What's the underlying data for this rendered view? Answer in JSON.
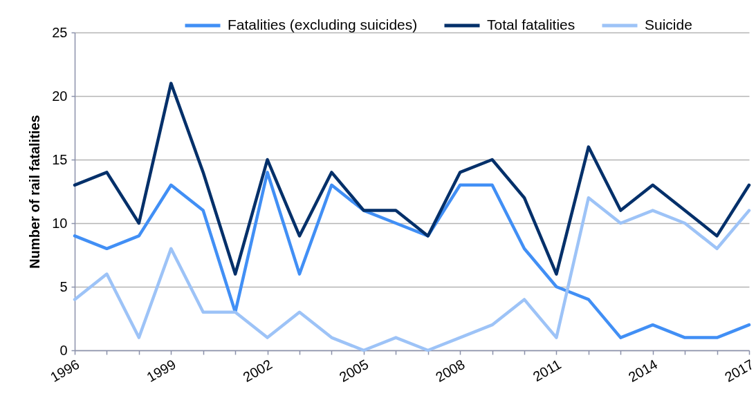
{
  "chart_data": {
    "type": "line",
    "ylabel": "Number of rail fatalities",
    "x": [
      1996,
      1997,
      1998,
      1999,
      2000,
      2001,
      2002,
      2003,
      2004,
      2005,
      2006,
      2007,
      2008,
      2009,
      2010,
      2011,
      2012,
      2013,
      2014,
      2015,
      2016,
      2017
    ],
    "series": [
      {
        "name": "Fatalities (excluding suicides)",
        "color": "#418ff5",
        "values": [
          9,
          8,
          9,
          13,
          11,
          3,
          14,
          6,
          13,
          11,
          10,
          9,
          13,
          13,
          8,
          5,
          4,
          1,
          2,
          1,
          1,
          2
        ]
      },
      {
        "name": "Total fatalities",
        "color": "#04306a",
        "values": [
          13,
          14,
          10,
          21,
          14,
          6,
          15,
          9,
          14,
          11,
          11,
          9,
          14,
          15,
          12,
          6,
          16,
          11,
          13,
          11,
          9,
          13
        ]
      },
      {
        "name": "Suicide",
        "color": "#9dc3f7",
        "values": [
          4,
          6,
          1,
          8,
          3,
          3,
          1,
          3,
          1,
          0,
          1,
          0,
          1,
          2,
          4,
          1,
          12,
          10,
          11,
          10,
          8,
          11
        ]
      }
    ],
    "xlim": [
      1996,
      2017
    ],
    "xticks": [
      1996,
      {
        "value": 1997,
        "label": null
      },
      {
        "value": 1998,
        "label": null
      },
      1999,
      {
        "value": 2000,
        "label": null
      },
      {
        "value": 2001,
        "label": null
      },
      2002,
      {
        "value": 2003,
        "label": null
      },
      {
        "value": 2004,
        "label": null
      },
      2005,
      {
        "value": 2006,
        "label": null
      },
      {
        "value": 2007,
        "label": null
      },
      2008,
      {
        "value": 2009,
        "label": null
      },
      {
        "value": 2010,
        "label": null
      },
      2011,
      {
        "value": 2012,
        "label": null
      },
      {
        "value": 2013,
        "label": null
      },
      2014,
      {
        "value": 2015,
        "label": null
      },
      {
        "value": 2016,
        "label": null
      },
      2017
    ],
    "ylim": [
      0,
      25
    ],
    "yticks": [
      0,
      5,
      10,
      15,
      20,
      25
    ],
    "grid": "y",
    "legend": "top",
    "line_style": "solid"
  }
}
